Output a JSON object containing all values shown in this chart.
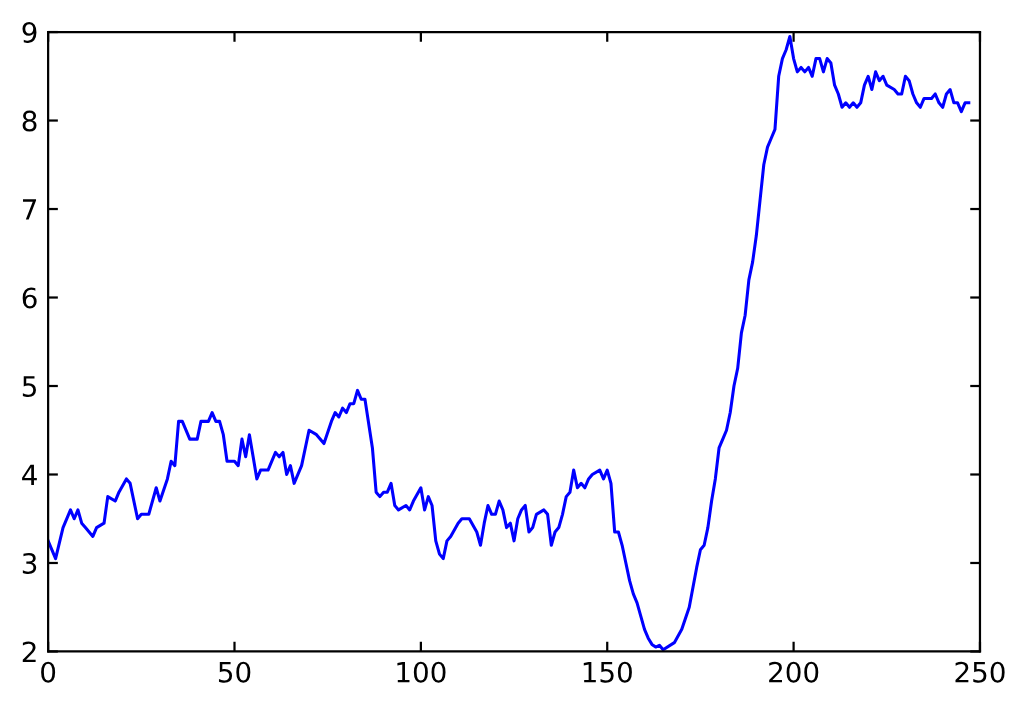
{
  "chart_data": {
    "type": "line",
    "xlim": [
      0,
      250
    ],
    "ylim": [
      2,
      9
    ],
    "xticks": [
      0,
      50,
      100,
      150,
      200,
      250
    ],
    "yticks": [
      2,
      3,
      4,
      5,
      6,
      7,
      8,
      9
    ],
    "grid": false,
    "legend": false,
    "marker": "none",
    "line_style": "solid",
    "series": [
      {
        "color": "#0000ff",
        "x": [
          0,
          2,
          4,
          6,
          7,
          8,
          9,
          10,
          12,
          13,
          15,
          16,
          18,
          19,
          21,
          22,
          24,
          25,
          27,
          29,
          30,
          32,
          33,
          34,
          35,
          36,
          38,
          40,
          41,
          43,
          44,
          45,
          46,
          47,
          48,
          50,
          51,
          52,
          53,
          54,
          55,
          56,
          57,
          59,
          61,
          62,
          63,
          64,
          65,
          66,
          68,
          70,
          72,
          74,
          76,
          77,
          78,
          79,
          80,
          81,
          82,
          83,
          84,
          85,
          87,
          88,
          89,
          90,
          91,
          92,
          93,
          94,
          96,
          97,
          98,
          100,
          101,
          102,
          103,
          104,
          105,
          106,
          107,
          108,
          110,
          111,
          113,
          115,
          116,
          117,
          118,
          119,
          120,
          121,
          122,
          123,
          124,
          125,
          126,
          127,
          128,
          129,
          130,
          131,
          133,
          134,
          135,
          136,
          137,
          138,
          139,
          140,
          141,
          142,
          143,
          144,
          145,
          146,
          148,
          149,
          150,
          151,
          152,
          153,
          154,
          155,
          156,
          157,
          158,
          159,
          160,
          161,
          162,
          163,
          164,
          165,
          168,
          170,
          172,
          174,
          175,
          176,
          177,
          178,
          179,
          180,
          181,
          182,
          183,
          184,
          185,
          186,
          187,
          188,
          189,
          190,
          191,
          192,
          193,
          194,
          195,
          196,
          197,
          198,
          199,
          200,
          201,
          202,
          203,
          204,
          205,
          206,
          207,
          208,
          209,
          210,
          211,
          212,
          213,
          214,
          215,
          216,
          217,
          218,
          219,
          220,
          221,
          222,
          223,
          224,
          225,
          227,
          228,
          229,
          230,
          231,
          232,
          233,
          234,
          235,
          237,
          238,
          239,
          240,
          241,
          242,
          243,
          244,
          245,
          246,
          247
        ],
        "values": [
          3.25,
          3.05,
          3.4,
          3.6,
          3.5,
          3.6,
          3.45,
          3.4,
          3.3,
          3.4,
          3.45,
          3.75,
          3.7,
          3.8,
          3.95,
          3.9,
          3.5,
          3.55,
          3.55,
          3.85,
          3.7,
          3.95,
          4.15,
          4.1,
          4.6,
          4.6,
          4.4,
          4.4,
          4.6,
          4.6,
          4.7,
          4.6,
          4.6,
          4.45,
          4.15,
          4.15,
          4.1,
          4.4,
          4.2,
          4.45,
          4.2,
          3.95,
          4.05,
          4.05,
          4.25,
          4.2,
          4.25,
          4.0,
          4.1,
          3.9,
          4.1,
          4.5,
          4.45,
          4.35,
          4.6,
          4.7,
          4.65,
          4.75,
          4.7,
          4.8,
          4.8,
          4.95,
          4.85,
          4.85,
          4.3,
          3.8,
          3.75,
          3.8,
          3.8,
          3.9,
          3.65,
          3.6,
          3.65,
          3.6,
          3.7,
          3.85,
          3.6,
          3.75,
          3.65,
          3.25,
          3.1,
          3.05,
          3.25,
          3.3,
          3.45,
          3.5,
          3.5,
          3.35,
          3.2,
          3.45,
          3.65,
          3.55,
          3.55,
          3.7,
          3.6,
          3.4,
          3.45,
          3.25,
          3.5,
          3.6,
          3.65,
          3.35,
          3.4,
          3.55,
          3.6,
          3.55,
          3.2,
          3.35,
          3.4,
          3.55,
          3.75,
          3.8,
          4.05,
          3.85,
          3.9,
          3.85,
          3.95,
          4.0,
          4.05,
          3.95,
          4.05,
          3.9,
          3.35,
          3.35,
          3.2,
          3.0,
          2.8,
          2.65,
          2.55,
          2.4,
          2.25,
          2.15,
          2.08,
          2.05,
          2.07,
          2.02,
          2.1,
          2.25,
          2.5,
          2.95,
          3.15,
          3.2,
          3.4,
          3.7,
          3.95,
          4.3,
          4.4,
          4.5,
          4.7,
          5.0,
          5.2,
          5.6,
          5.8,
          6.2,
          6.4,
          6.7,
          7.1,
          7.5,
          7.7,
          7.8,
          7.9,
          8.5,
          8.7,
          8.8,
          8.95,
          8.7,
          8.55,
          8.6,
          8.55,
          8.6,
          8.5,
          8.7,
          8.7,
          8.55,
          8.7,
          8.65,
          8.4,
          8.3,
          8.15,
          8.2,
          8.15,
          8.2,
          8.15,
          8.2,
          8.4,
          8.5,
          8.35,
          8.55,
          8.45,
          8.5,
          8.4,
          8.35,
          8.3,
          8.3,
          8.5,
          8.45,
          8.3,
          8.2,
          8.15,
          8.25,
          8.25,
          8.3,
          8.2,
          8.15,
          8.3,
          8.35,
          8.2,
          8.2,
          8.1,
          8.2,
          8.2
        ]
      }
    ]
  }
}
